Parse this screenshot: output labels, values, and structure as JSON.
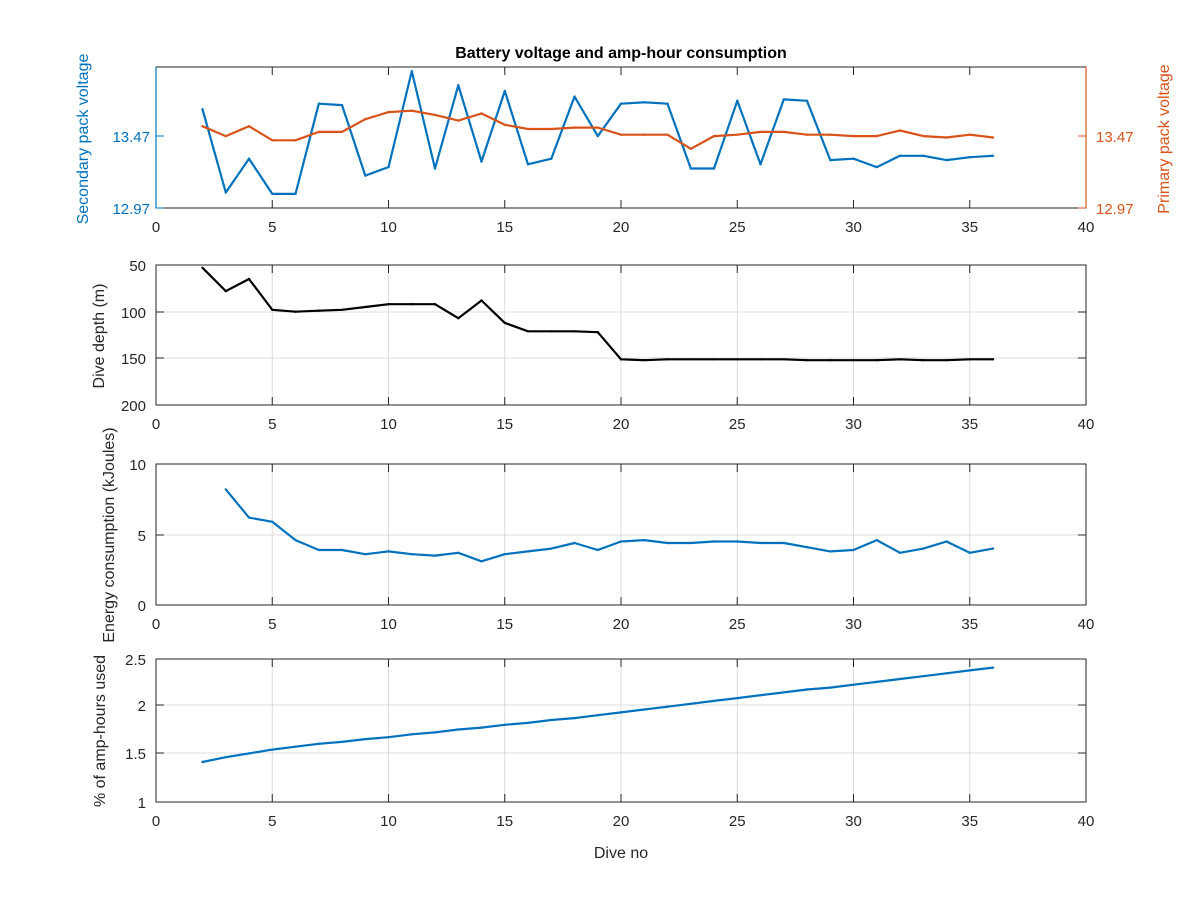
{
  "chart_data": [
    {
      "type": "line",
      "title": "Battery voltage and amp-hour consumption",
      "xlabel": "",
      "xlim": [
        0,
        40
      ],
      "xticks": [
        "0",
        "5",
        "10",
        "15",
        "20",
        "25",
        "30",
        "35",
        "40"
      ],
      "ylabel": "Secondary pack voltage",
      "ylim": [
        12.97,
        13.97
      ],
      "yticks": [
        "12.97",
        "13.47"
      ],
      "ylabel_right": "Primary pack voltage",
      "yticks_right": [
        "12.97",
        "13.47"
      ],
      "grid": false,
      "series": [
        {
          "axis": "left",
          "color": "#0072bd",
          "x": [
            2,
            3,
            4,
            5,
            6,
            7,
            8,
            9,
            10,
            11,
            12,
            13,
            14,
            15,
            16,
            17,
            18,
            19,
            20,
            21,
            22,
            23,
            24,
            25,
            26,
            27,
            28,
            29,
            30,
            31,
            32,
            33,
            34,
            35,
            36
          ],
          "values": [
            13.67,
            13.08,
            13.32,
            13.07,
            13.07,
            13.71,
            13.7,
            13.2,
            13.26,
            13.94,
            13.25,
            13.84,
            13.3,
            13.8,
            13.28,
            13.32,
            13.76,
            13.48,
            13.71,
            13.72,
            13.71,
            13.25,
            13.25,
            13.73,
            13.28,
            13.74,
            13.73,
            13.31,
            13.32,
            13.26,
            13.34,
            13.34,
            13.31,
            13.33,
            13.34
          ]
        },
        {
          "axis": "right",
          "color": "#d95319",
          "x": [
            2,
            3,
            4,
            5,
            6,
            7,
            8,
            9,
            10,
            11,
            12,
            13,
            14,
            15,
            16,
            17,
            18,
            19,
            20,
            21,
            22,
            23,
            24,
            25,
            26,
            27,
            28,
            29,
            30,
            31,
            32,
            33,
            34,
            35,
            36
          ],
          "values": [
            13.55,
            13.48,
            13.55,
            13.45,
            13.45,
            13.51,
            13.51,
            13.6,
            13.65,
            13.66,
            13.63,
            13.59,
            13.64,
            13.56,
            13.53,
            13.53,
            13.54,
            13.54,
            13.49,
            13.49,
            13.49,
            13.39,
            13.48,
            13.49,
            13.51,
            13.51,
            13.49,
            13.49,
            13.48,
            13.48,
            13.52,
            13.48,
            13.47,
            13.49,
            13.47
          ]
        }
      ]
    },
    {
      "type": "line",
      "ylabel": "Dive depth (m)",
      "xlim": [
        0,
        40
      ],
      "xticks": [
        "0",
        "5",
        "10",
        "15",
        "20",
        "25",
        "30",
        "35",
        "40"
      ],
      "ylim": [
        50,
        200
      ],
      "y_reversed": true,
      "yticks_text": [
        "50",
        "100",
        "150",
        "200"
      ],
      "grid": true,
      "series": [
        {
          "color": "#000000",
          "x": [
            2,
            3,
            4,
            5,
            6,
            7,
            8,
            9,
            10,
            11,
            12,
            13,
            14,
            15,
            16,
            17,
            18,
            19,
            20,
            21,
            22,
            23,
            24,
            25,
            26,
            27,
            28,
            29,
            30,
            31,
            32,
            33,
            34,
            35,
            36
          ],
          "values": [
            53,
            78,
            65,
            98,
            100,
            99,
            98,
            95,
            92,
            92,
            92,
            107,
            88,
            112,
            121,
            121,
            121,
            122,
            151,
            152,
            151,
            151,
            151,
            151,
            151,
            151,
            152,
            152,
            152,
            152,
            151,
            152,
            152,
            151,
            151
          ]
        }
      ]
    },
    {
      "type": "line",
      "ylabel": "Energy consumption (kJoules)",
      "xlim": [
        0,
        40
      ],
      "xticks": [
        "0",
        "5",
        "10",
        "15",
        "20",
        "25",
        "30",
        "35",
        "40"
      ],
      "ylim": [
        0,
        10
      ],
      "yticks_text": [
        "0",
        "5",
        "10"
      ],
      "grid": true,
      "series": [
        {
          "color": "#0072bd",
          "x": [
            3,
            4,
            5,
            6,
            7,
            8,
            9,
            10,
            11,
            12,
            13,
            14,
            15,
            16,
            17,
            18,
            19,
            20,
            21,
            22,
            23,
            24,
            25,
            26,
            27,
            28,
            29,
            30,
            31,
            32,
            33,
            34,
            35,
            36
          ],
          "values": [
            8.2,
            6.2,
            5.9,
            4.6,
            3.9,
            3.9,
            3.6,
            3.8,
            3.6,
            3.5,
            3.7,
            3.1,
            3.6,
            3.8,
            4.0,
            4.4,
            3.9,
            4.5,
            4.6,
            4.4,
            4.4,
            4.5,
            4.5,
            4.4,
            4.4,
            4.1,
            3.8,
            3.9,
            4.6,
            3.7,
            4.0,
            4.5,
            3.7,
            4.0
          ]
        }
      ]
    },
    {
      "type": "line",
      "ylabel": "% of amp-hours used",
      "xlabel": "Dive no",
      "xlim": [
        0,
        40
      ],
      "xticks": [
        "0",
        "5",
        "10",
        "15",
        "20",
        "25",
        "30",
        "35",
        "40"
      ],
      "ylim": [
        1,
        2.5
      ],
      "yticks_text": [
        "1",
        "1.5",
        "2",
        "2.5"
      ],
      "grid": true,
      "series": [
        {
          "color": "#0072bd",
          "x": [
            2,
            3,
            4,
            5,
            6,
            7,
            8,
            9,
            10,
            11,
            12,
            13,
            14,
            15,
            16,
            17,
            18,
            19,
            20,
            21,
            22,
            23,
            24,
            25,
            26,
            27,
            28,
            29,
            30,
            31,
            32,
            33,
            34,
            35,
            36
          ],
          "values": [
            1.42,
            1.47,
            1.51,
            1.55,
            1.58,
            1.61,
            1.63,
            1.66,
            1.68,
            1.71,
            1.73,
            1.76,
            1.78,
            1.81,
            1.83,
            1.86,
            1.88,
            1.91,
            1.94,
            1.97,
            2.0,
            2.03,
            2.06,
            2.09,
            2.12,
            2.15,
            2.18,
            2.2,
            2.23,
            2.26,
            2.29,
            2.32,
            2.35,
            2.38,
            2.41
          ]
        }
      ]
    }
  ],
  "colors": {
    "secondary_axis": "#0072bd",
    "primary_axis": "#d95319",
    "depth_line": "#000000"
  }
}
